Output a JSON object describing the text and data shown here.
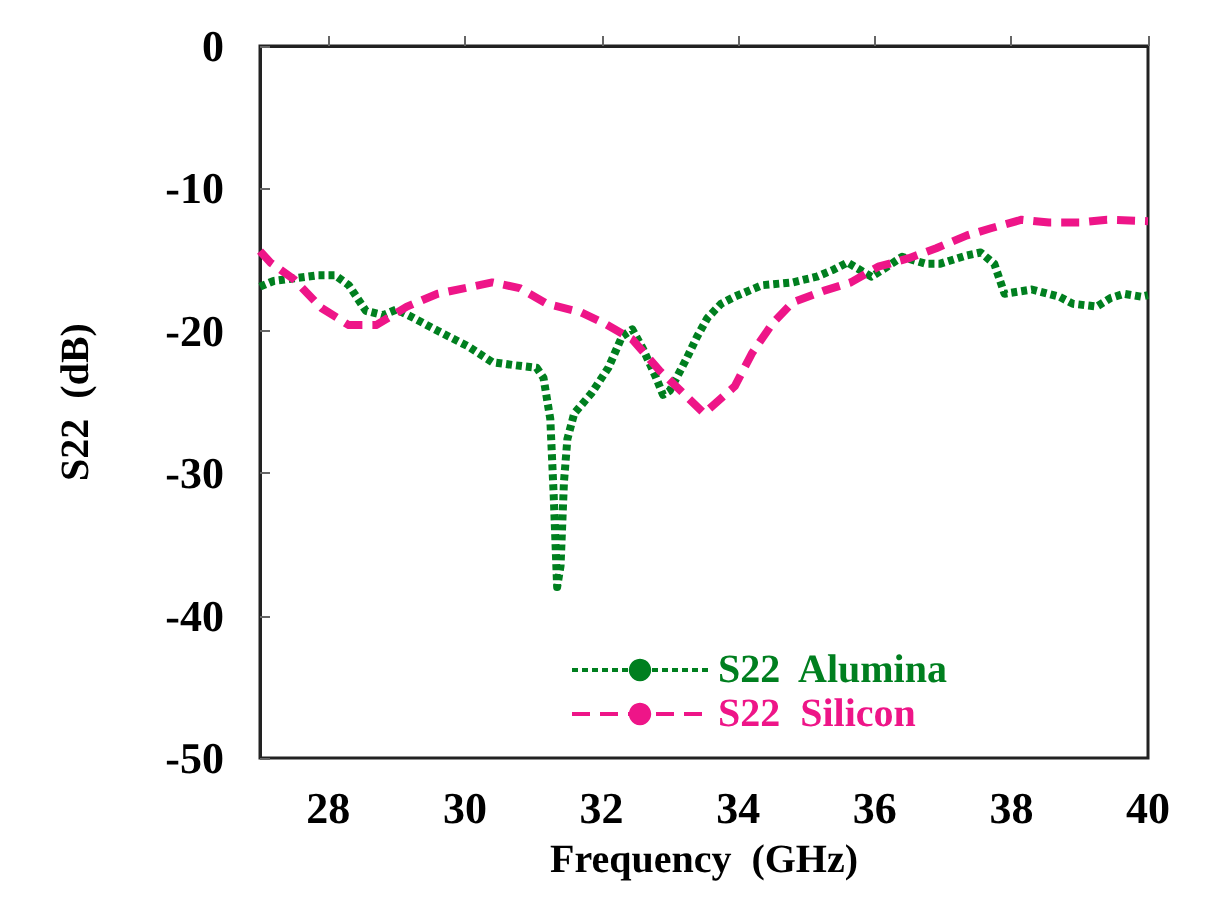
{
  "chart_data": {
    "type": "line",
    "xlabel": "Frequency  (GHz)",
    "ylabel": "S22  (dB)",
    "xlim": [
      27,
      40
    ],
    "xticks": [
      28,
      30,
      32,
      34,
      36,
      38,
      40
    ],
    "ylim": [
      -50,
      0
    ],
    "yticks": [
      -50,
      -40,
      -30,
      -20,
      -10,
      0
    ],
    "grid": false,
    "legend": "bottom",
    "marker": "none",
    "series": [
      {
        "name": "S22  Alumina",
        "color": "#007f1f",
        "line_style": "dotted",
        "x": [
          27,
          27.2,
          27.85,
          28.1,
          28.3,
          28.55,
          28.8,
          29.0,
          29.25,
          29.6,
          30.05,
          30.4,
          30.7,
          31.05,
          31.15,
          31.25,
          31.3,
          31.35,
          31.4,
          31.45,
          31.5,
          31.6,
          31.85,
          32.1,
          32.3,
          32.45,
          32.6,
          32.8,
          32.9,
          33.0,
          33.25,
          33.4,
          33.55,
          33.75,
          33.95,
          34.35,
          34.8,
          35.15,
          35.4,
          35.6,
          35.95,
          36.15,
          36.4,
          36.75,
          36.95,
          37.35,
          37.55,
          37.75,
          37.9,
          38.3,
          38.7,
          38.9,
          39.25,
          39.45,
          39.65,
          39.9,
          40
        ],
        "values": [
          -16.9,
          -16.5,
          -16.1,
          -16.1,
          -16.8,
          -18.6,
          -18.9,
          -18.5,
          -19.1,
          -20.0,
          -21.1,
          -22.2,
          -22.4,
          -22.6,
          -23.3,
          -26.2,
          -31.6,
          -38.0,
          -36.5,
          -30.6,
          -27.6,
          -25.8,
          -24.4,
          -22.6,
          -20.4,
          -19.9,
          -21.2,
          -23.3,
          -24.5,
          -24.2,
          -21.9,
          -20.4,
          -19.1,
          -18.1,
          -17.6,
          -16.8,
          -16.6,
          -16.2,
          -15.7,
          -15.2,
          -16.2,
          -15.6,
          -14.8,
          -15.3,
          -15.3,
          -14.7,
          -14.5,
          -15.3,
          -17.4,
          -17.1,
          -17.6,
          -18.1,
          -18.3,
          -17.7,
          -17.4,
          -17.6,
          -17.5
        ]
      },
      {
        "name": "S22  Silicon",
        "color": "#ee1588",
        "line_style": "dashed",
        "x": [
          27.0,
          27.15,
          27.5,
          27.9,
          28.3,
          28.7,
          29.15,
          29.6,
          30.0,
          30.4,
          30.8,
          31.2,
          31.7,
          32.05,
          32.45,
          32.85,
          33.2,
          33.5,
          33.95,
          34.2,
          34.5,
          34.8,
          35.25,
          35.65,
          36.05,
          36.5,
          36.9,
          37.35,
          37.7,
          38.15,
          38.55,
          39.0,
          39.4,
          40
        ],
        "values": [
          -14.4,
          -15.2,
          -16.4,
          -18.4,
          -19.6,
          -19.6,
          -18.3,
          -17.4,
          -17.0,
          -16.6,
          -17.0,
          -18.1,
          -18.7,
          -19.5,
          -20.6,
          -22.8,
          -24.4,
          -25.8,
          -23.9,
          -21.6,
          -19.5,
          -18.0,
          -17.2,
          -16.6,
          -15.5,
          -14.9,
          -14.2,
          -13.3,
          -12.8,
          -12.2,
          -12.4,
          -12.4,
          -12.2,
          -12.3
        ]
      }
    ]
  }
}
